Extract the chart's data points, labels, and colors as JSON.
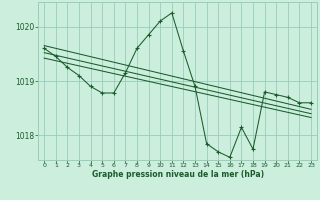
{
  "title": "Graphe pression niveau de la mer (hPa)",
  "background_color": "#cceedd",
  "line_color": "#1a5c2a",
  "grid_color": "#99ccbb",
  "xlim": [
    -0.5,
    23.5
  ],
  "ylim": [
    1017.55,
    1020.45
  ],
  "yticks": [
    1018.0,
    1019.0,
    1020.0
  ],
  "xticks": [
    0,
    1,
    2,
    3,
    4,
    5,
    6,
    7,
    8,
    9,
    10,
    11,
    12,
    13,
    14,
    15,
    16,
    17,
    18,
    19,
    20,
    21,
    22,
    23
  ],
  "series_main": {
    "x": [
      0,
      1,
      2,
      3,
      4,
      5,
      6,
      7,
      8,
      9,
      10,
      11,
      12,
      13,
      14,
      15,
      16,
      17,
      18,
      19,
      20,
      21,
      22,
      23
    ],
    "y": [
      1019.6,
      1019.45,
      1019.25,
      1019.1,
      1018.9,
      1018.78,
      1018.78,
      1019.15,
      1019.6,
      1019.85,
      1020.1,
      1020.25,
      1019.55,
      1018.9,
      1017.85,
      1017.7,
      1017.6,
      1018.15,
      1017.75,
      1018.8,
      1018.75,
      1018.7,
      1018.6,
      1018.6
    ]
  },
  "series_smooth1": {
    "x": [
      0,
      23
    ],
    "y": [
      1019.65,
      1018.48
    ]
  },
  "series_smooth2": {
    "x": [
      0,
      23
    ],
    "y": [
      1019.52,
      1018.4
    ]
  },
  "series_smooth3": {
    "x": [
      0,
      23
    ],
    "y": [
      1019.42,
      1018.33
    ]
  }
}
